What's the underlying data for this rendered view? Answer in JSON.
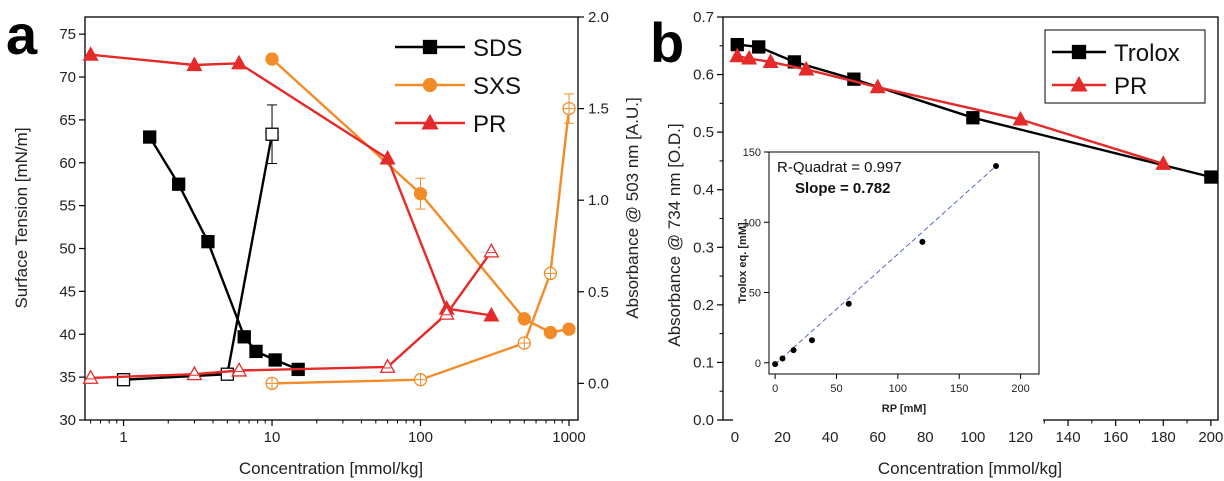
{
  "panel_labels": {
    "a": "a",
    "b": "b"
  },
  "colors": {
    "sds": "#000000",
    "sxs": "#f28c28",
    "pr": "#e52a2a",
    "trolox": "#000000",
    "fit": "#5566cc"
  },
  "chart_data": [
    {
      "type": "line",
      "panel": "a",
      "xlabel": "Concentration [mmol/kg]",
      "ylabel": "Surface Tension [mN/m]",
      "y2label": "Absorbance @ 503 nm [A.U.]",
      "xscale": "log",
      "xlim": [
        0.55,
        1150
      ],
      "ylim": [
        30,
        77
      ],
      "y2lim": [
        -0.2,
        2.0
      ],
      "xticks": [
        1,
        10,
        100,
        1000
      ],
      "xtick_labels": [
        "1",
        "10",
        "100",
        "1000"
      ],
      "yticks": [
        30,
        35,
        40,
        45,
        50,
        55,
        60,
        65,
        70,
        75
      ],
      "ytick_labels": [
        "30",
        "35",
        "40",
        "45",
        "50",
        "55",
        "60",
        "65",
        "70",
        "75"
      ],
      "y2ticks": [
        0.0,
        0.5,
        1.0,
        1.5,
        2.0
      ],
      "y2tick_labels": [
        "0.0",
        "0.5",
        "1.0",
        "1.5",
        "2.0"
      ],
      "legend_position": "top-right",
      "legend": [
        {
          "name": "SDS",
          "marker": "square",
          "color": "#000000"
        },
        {
          "name": "SXS",
          "marker": "circle",
          "color": "#f28c28"
        },
        {
          "name": "PR",
          "marker": "triangle",
          "color": "#e52a2a"
        }
      ],
      "series": [
        {
          "name": "SDS",
          "axis": "left",
          "marker": "square",
          "filled": true,
          "color": "#000000",
          "x": [
            1.5,
            2.35,
            3.7,
            6.5,
            7.8,
            10.5,
            15
          ],
          "y": [
            63.0,
            57.5,
            50.8,
            39.7,
            38.0,
            37.0,
            35.9
          ]
        },
        {
          "name": "SXS",
          "axis": "left",
          "marker": "circle",
          "filled": true,
          "color": "#f28c28",
          "x": [
            10,
            100,
            500,
            750,
            1000
          ],
          "y": [
            72.1,
            56.4,
            41.8,
            40.2,
            40.6
          ],
          "error_index": 1,
          "error": 1.8
        },
        {
          "name": "PR",
          "axis": "left",
          "marker": "triangle",
          "filled": true,
          "color": "#e52a2a",
          "x": [
            0.6,
            3,
            6,
            60,
            150,
            300
          ],
          "y": [
            72.6,
            71.4,
            71.6,
            60.5,
            43.0,
            42.2
          ]
        },
        {
          "name": "SDS",
          "axis": "right",
          "marker": "square",
          "filled": false,
          "color": "#000000",
          "x": [
            1,
            5,
            10
          ],
          "y": [
            0.02,
            0.05,
            1.36
          ],
          "error_index": 2,
          "error": 0.16
        },
        {
          "name": "SXS",
          "axis": "right",
          "marker": "circle",
          "filled": false,
          "color": "#f28c28",
          "x": [
            10,
            100,
            500,
            750,
            1000
          ],
          "y": [
            0.0,
            0.02,
            0.22,
            0.6,
            1.5
          ],
          "error_index": 4,
          "error": 0.08
        },
        {
          "name": "PR",
          "axis": "right",
          "marker": "triangle",
          "filled": false,
          "color": "#e52a2a",
          "x": [
            0.6,
            3,
            6,
            60,
            150,
            300
          ],
          "y": [
            0.03,
            0.05,
            0.07,
            0.09,
            0.38,
            0.72
          ]
        }
      ]
    },
    {
      "type": "line",
      "panel": "b",
      "xlabel": "Concentration [mmol/kg]",
      "ylabel": "Absorbance @ 734 nm [O.D.]",
      "xlim": [
        -5,
        203
      ],
      "ylim": [
        0.0,
        0.7
      ],
      "xticks": [
        0,
        20,
        40,
        60,
        80,
        100,
        120,
        140,
        160,
        180,
        200
      ],
      "xtick_labels": [
        "0",
        "20",
        "40",
        "60",
        "80",
        "100",
        "120",
        "140",
        "160",
        "180",
        "200"
      ],
      "yticks": [
        0.0,
        0.1,
        0.2,
        0.3,
        0.4,
        0.5,
        0.6,
        0.7
      ],
      "ytick_labels": [
        "0.0",
        "0.1",
        "0.2",
        "0.3",
        "0.4",
        "0.5",
        "0.6",
        "0.7"
      ],
      "legend_position": "top-right",
      "legend": [
        {
          "name": "Trolox",
          "marker": "square",
          "color": "#000000"
        },
        {
          "name": "PR",
          "marker": "triangle",
          "color": "#e52a2a"
        }
      ],
      "series": [
        {
          "name": "Trolox",
          "marker": "square",
          "color": "#000000",
          "x": [
            1,
            10,
            25,
            50,
            100,
            200
          ],
          "y": [
            0.652,
            0.648,
            0.622,
            0.592,
            0.525,
            0.422
          ]
        },
        {
          "name": "PR",
          "marker": "triangle",
          "color": "#e52a2a",
          "x": [
            1,
            6,
            15,
            30,
            60,
            120,
            180
          ],
          "y": [
            0.632,
            0.628,
            0.622,
            0.609,
            0.578,
            0.522,
            0.445
          ]
        }
      ]
    },
    {
      "type": "scatter",
      "panel": "b-inset",
      "xlabel": "RP [mM]",
      "ylabel": "Trolox eq. [mM]",
      "xlim": [
        -5,
        215
      ],
      "ylim": [
        -8,
        150
      ],
      "xticks": [
        0,
        50,
        100,
        150,
        200
      ],
      "xtick_labels": [
        "0",
        "50",
        "100",
        "150",
        "200"
      ],
      "yticks": [
        0,
        50,
        100,
        150
      ],
      "ytick_labels": [
        "0",
        "50",
        "100",
        "150"
      ],
      "annotations": [
        "R-Quadrat = 0.997",
        "Slope = 0.782"
      ],
      "x": [
        0,
        6,
        15,
        30,
        60,
        120,
        180
      ],
      "y": [
        -1,
        3,
        9,
        16,
        42,
        86,
        140
      ],
      "fit_line": {
        "x": [
          0,
          180
        ],
        "y": [
          -1,
          140
        ]
      }
    }
  ]
}
